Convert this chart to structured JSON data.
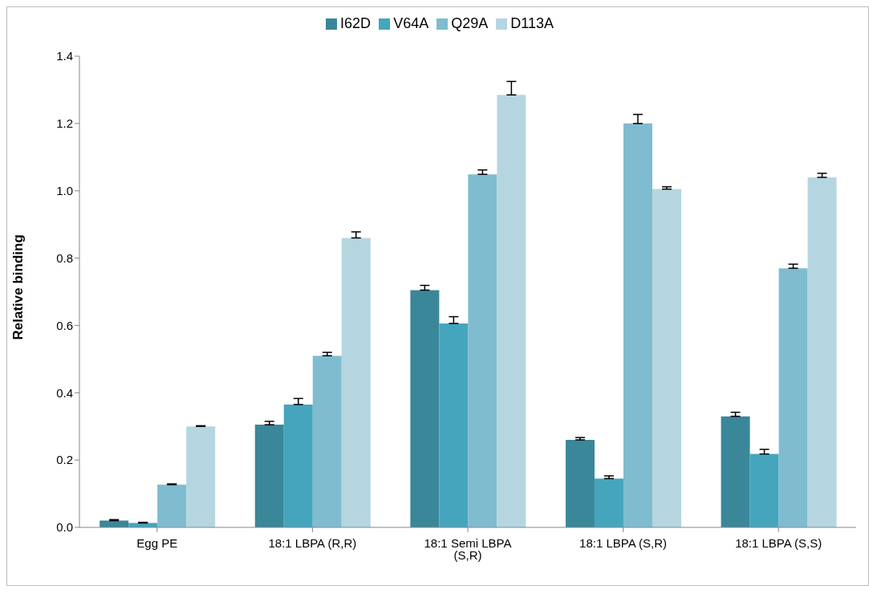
{
  "chart_data": {
    "type": "bar",
    "ylabel": "Relative binding",
    "categories": [
      "Egg PE",
      "18:1 LBPA (R,R)",
      "18:1 Semi LBPA (S,R)",
      "18:1 LBPA (S,R)",
      "18:1 LBPA (S,S)"
    ],
    "series": [
      {
        "name": "I62D",
        "color": "#3a8799",
        "values": [
          0.02,
          0.305,
          0.705,
          0.26,
          0.33
        ],
        "errors": [
          [
            0.02,
            0.023
          ],
          [
            0.305,
            0.315
          ],
          [
            0.705,
            0.719
          ],
          [
            0.26,
            0.267
          ],
          [
            0.33,
            0.342
          ]
        ]
      },
      {
        "name": "V64A",
        "color": "#45a5bd",
        "values": [
          0.013,
          0.365,
          0.606,
          0.145,
          0.218
        ],
        "errors": [
          [
            0.013,
            0.015
          ],
          [
            0.365,
            0.383
          ],
          [
            0.606,
            0.626
          ],
          [
            0.145,
            0.153
          ],
          [
            0.218,
            0.232
          ]
        ]
      },
      {
        "name": "Q29A",
        "color": "#7fbcd0",
        "values": [
          0.127,
          0.51,
          1.049,
          1.2,
          0.77
        ],
        "errors": [
          [
            0.127,
            0.129
          ],
          [
            0.51,
            0.52
          ],
          [
            1.049,
            1.062
          ],
          [
            1.2,
            1.227
          ],
          [
            0.77,
            0.782
          ]
        ]
      },
      {
        "name": "D113A",
        "color": "#b5d6e0",
        "values": [
          0.3,
          0.86,
          1.285,
          1.005,
          1.04
        ],
        "errors": [
          [
            0.3,
            0.302
          ],
          [
            0.86,
            0.878
          ],
          [
            1.285,
            1.325
          ],
          [
            1.005,
            1.012
          ],
          [
            1.04,
            1.052
          ]
        ]
      }
    ],
    "ylim": [
      0,
      1.4
    ],
    "yticks": [
      {
        "value": 0,
        "label": "0.0"
      },
      0.2,
      0.4,
      0.6,
      0.8,
      {
        "value": 1,
        "label": "1.0"
      },
      1.2,
      1.4
    ],
    "legend": "top",
    "grid": false
  }
}
